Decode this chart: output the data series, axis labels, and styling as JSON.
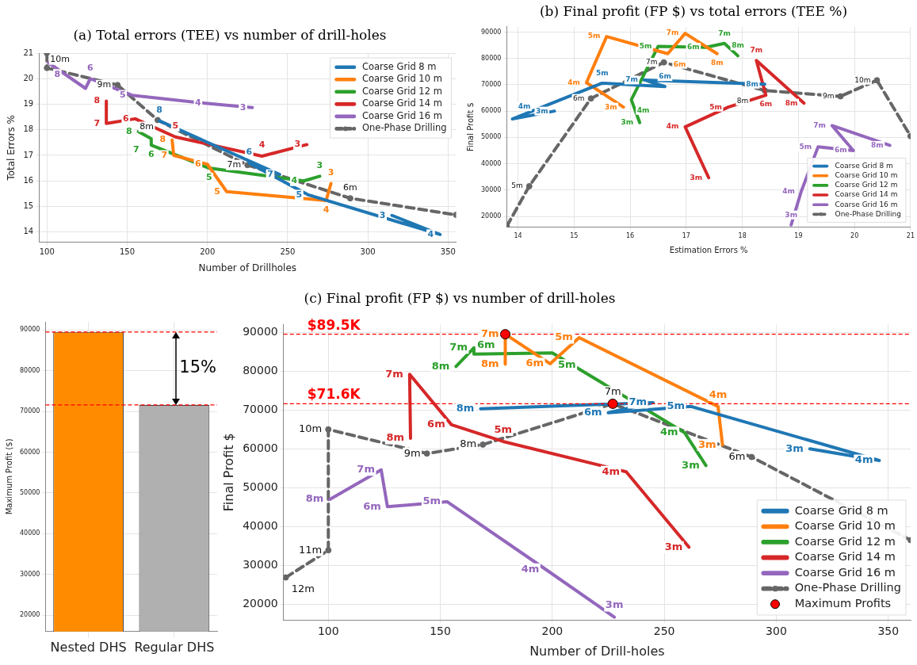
{
  "chart_data": [
    {
      "type": "line",
      "title": "(a) Total errors (TEE) vs number of drill-holes",
      "xlabel": "Number of Drillholes",
      "ylabel": "Total Errors %",
      "xlim": [
        95,
        355
      ],
      "xticks": [
        100,
        150,
        200,
        250,
        300,
        350
      ],
      "ylim": [
        13.6,
        21
      ],
      "yticks": [
        14,
        15,
        16,
        17,
        18,
        19,
        20,
        21
      ],
      "grid": true,
      "legend": "top right",
      "marker": "none",
      "line_style": "solid",
      "series": [
        {
          "name": "Coarse Grid 8 m",
          "color": "#1f77b4",
          "x": [
            170,
            245,
            226,
            263,
            345,
            315
          ],
          "values": [
            18.35,
            16.25,
            16.7,
            15.45,
            13.9,
            14.65
          ]
        },
        {
          "name": "Coarse Grid 10 m",
          "color": "#ff7f0e",
          "x": [
            178,
            179,
            200,
            212,
            274,
            277
          ],
          "values": [
            17.6,
            17.0,
            16.65,
            15.58,
            15.23,
            15.9
          ]
        },
        {
          "name": "Coarse Grid 12 m",
          "color": "#2ca02c",
          "x": [
            157,
            165,
            165,
            201,
            260,
            270
          ],
          "values": [
            17.93,
            17.65,
            17.4,
            16.5,
            16.0,
            16.18
          ]
        },
        {
          "name": "Coarse Grid 14 m",
          "color": "#d62728",
          "x": [
            137,
            137,
            155,
            180,
            234,
            262
          ],
          "values": [
            19.12,
            18.25,
            18.43,
            17.72,
            16.97,
            17.42
          ]
        },
        {
          "name": "Coarse Grid 16 m",
          "color": "#9467bd",
          "x": [
            101,
            124,
            127,
            153,
            200,
            228
          ],
          "values": [
            20.62,
            19.62,
            20.0,
            19.35,
            19.03,
            18.87
          ]
        },
        {
          "name": "One-Phase Drilling",
          "color": "#666666",
          "marker": "circle",
          "line_style": "dashed",
          "x": [
            100,
            100,
            144,
            169,
            225,
            289,
            355
          ],
          "values": [
            21,
            20.42,
            19.75,
            18.38,
            16.62,
            15.32,
            14.67
          ]
        }
      ],
      "annotations": [
        {
          "text": "8",
          "x": 170,
          "y": 18.35
        },
        {
          "text": "7",
          "x": 245,
          "y": 16.25
        },
        {
          "text": "6",
          "x": 226,
          "y": 16.7
        },
        {
          "text": "5",
          "x": 263,
          "y": 15.45
        },
        {
          "text": "4",
          "x": 345,
          "y": 13.9
        },
        {
          "text": "3",
          "x": 315,
          "y": 14.65
        },
        {
          "text": "8",
          "x": 178,
          "y": 17.6
        },
        {
          "text": "7",
          "x": 179,
          "y": 17.0
        },
        {
          "text": "6",
          "x": 200,
          "y": 16.65
        },
        {
          "text": "5",
          "x": 212,
          "y": 15.58
        },
        {
          "text": "4",
          "x": 274,
          "y": 15.23
        },
        {
          "text": "3",
          "x": 277,
          "y": 15.9
        },
        {
          "text": "8",
          "x": 157,
          "y": 17.93
        },
        {
          "text": "7",
          "x": 165,
          "y": 17.65
        },
        {
          "text": "6",
          "x": 165,
          "y": 17.4
        },
        {
          "text": "5",
          "x": 201,
          "y": 16.5
        },
        {
          "text": "4",
          "x": 260,
          "y": 16.0
        },
        {
          "text": "3",
          "x": 270,
          "y": 16.18
        },
        {
          "text": "8",
          "x": 137,
          "y": 19.12
        },
        {
          "text": "7",
          "x": 137,
          "y": 18.25
        },
        {
          "text": "6",
          "x": 155,
          "y": 18.43
        },
        {
          "text": "5",
          "x": 180,
          "y": 17.72
        },
        {
          "text": "4",
          "x": 234,
          "y": 16.97
        },
        {
          "text": "3",
          "x": 262,
          "y": 17.42
        },
        {
          "text": "8",
          "x": 101,
          "y": 20.62
        },
        {
          "text": "6",
          "x": 127,
          "y": 20.0
        },
        {
          "text": "5",
          "x": 153,
          "y": 19.35
        },
        {
          "text": "4",
          "x": 200,
          "y": 19.03
        },
        {
          "text": "3",
          "x": 228,
          "y": 18.87
        },
        {
          "text": "10m",
          "x": 100,
          "y": 20.42
        },
        {
          "text": "9m",
          "x": 144,
          "y": 19.75
        },
        {
          "text": "8m",
          "x": 169,
          "y": 18.38
        },
        {
          "text": "7m",
          "x": 225,
          "y": 16.62
        },
        {
          "text": "6m",
          "x": 289,
          "y": 15.32
        }
      ]
    },
    {
      "type": "line",
      "title": "(b) Final profit (FP $) vs total errors (TEE %)",
      "xlabel": "Estimation Errors %",
      "ylabel": "Final Profit $",
      "xlim": [
        13.8,
        21
      ],
      "xticks": [
        14,
        15,
        16,
        17,
        18,
        19,
        20,
        21
      ],
      "ylim": [
        16000,
        92000
      ],
      "yticks": [
        20000,
        30000,
        40000,
        50000,
        60000,
        70000,
        80000,
        90000
      ],
      "grid": true,
      "legend": "bottom right",
      "marker": "none",
      "line_style": "solid",
      "series": [
        {
          "name": "Coarse Grid 8 m",
          "color": "#1f77b4",
          "x": [
            18.4,
            16.25,
            16.62,
            15.5,
            13.9,
            14.65
          ],
          "values": [
            70200,
            71800,
            69300,
            70600,
            57000,
            60000
          ]
        },
        {
          "name": "Coarse Grid 10 m",
          "color": "#ff7f0e",
          "x": [
            17.55,
            16.98,
            16.67,
            15.58,
            15.22,
            15.88
          ],
          "values": [
            81800,
            89500,
            81800,
            88300,
            70800,
            61500
          ]
        },
        {
          "name": "Coarse Grid 12 m",
          "color": "#2ca02c",
          "x": [
            17.92,
            17.68,
            17.35,
            16.5,
            16.02,
            16.17
          ],
          "values": [
            81000,
            85700,
            84200,
            84600,
            64300,
            55600
          ]
        },
        {
          "name": "Coarse Grid 14 m",
          "color": "#d62728",
          "x": [
            19.1,
            18.25,
            18.42,
            17.75,
            16.98,
            17.4
          ],
          "values": [
            63000,
            79200,
            66000,
            61500,
            54000,
            34700
          ]
        },
        {
          "name": "Coarse Grid 16 m",
          "color": "#9467bd",
          "x": [
            20.63,
            19.6,
            19.98,
            19.35,
            19.05,
            18.87
          ],
          "values": [
            47000,
            54500,
            45000,
            46400,
            29500,
            16800
          ]
        },
        {
          "name": "One-Phase Drilling",
          "color": "#666666",
          "marker": "circle",
          "line_style": "dashed",
          "x": [
            13.8,
            14.2,
            15.3,
            16.6,
            18.4,
            19.75,
            20.4,
            21
          ],
          "values": [
            16300,
            31500,
            64800,
            78500,
            67800,
            65600,
            71700,
            50500
          ]
        }
      ],
      "annotations": [
        {
          "text": "8m",
          "x": 18.4,
          "y": 70200
        },
        {
          "text": "7m",
          "x": 16.25,
          "y": 71800
        },
        {
          "text": "6m",
          "x": 16.62,
          "y": 69300
        },
        {
          "text": "5m",
          "x": 15.5,
          "y": 70600
        },
        {
          "text": "4m",
          "x": 13.9,
          "y": 57000
        },
        {
          "text": "3m",
          "x": 14.65,
          "y": 60000
        },
        {
          "text": "8m",
          "x": 17.55,
          "y": 81800
        },
        {
          "text": "7m",
          "x": 16.98,
          "y": 89500
        },
        {
          "text": "6m",
          "x": 16.67,
          "y": 81800
        },
        {
          "text": "5m",
          "x": 15.58,
          "y": 88300
        },
        {
          "text": "4m",
          "x": 15.22,
          "y": 70800
        },
        {
          "text": "3m",
          "x": 15.88,
          "y": 61500
        },
        {
          "text": "8m",
          "x": 17.92,
          "y": 81000
        },
        {
          "text": "7m",
          "x": 17.68,
          "y": 85700
        },
        {
          "text": "6m",
          "x": 17.35,
          "y": 84200
        },
        {
          "text": "5m",
          "x": 16.5,
          "y": 84600
        },
        {
          "text": "4m",
          "x": 16.02,
          "y": 64300
        },
        {
          "text": "3m",
          "x": 16.17,
          "y": 55600
        },
        {
          "text": "8m",
          "x": 19.1,
          "y": 63000
        },
        {
          "text": "7m",
          "x": 18.25,
          "y": 79200
        },
        {
          "text": "6m",
          "x": 18.42,
          "y": 66000
        },
        {
          "text": "5m",
          "x": 17.75,
          "y": 61500
        },
        {
          "text": "4m",
          "x": 16.98,
          "y": 54000
        },
        {
          "text": "3m",
          "x": 17.4,
          "y": 34700
        },
        {
          "text": "8m",
          "x": 20.63,
          "y": 47000
        },
        {
          "text": "7m",
          "x": 19.6,
          "y": 54500
        },
        {
          "text": "6m",
          "x": 19.98,
          "y": 45000
        },
        {
          "text": "5m",
          "x": 19.35,
          "y": 46400
        },
        {
          "text": "4m",
          "x": 19.05,
          "y": 29500
        },
        {
          "text": "3m",
          "x": 18.87,
          "y": 16800
        },
        {
          "text": "5m",
          "x": 14.2,
          "y": 31500
        },
        {
          "text": "6m",
          "x": 15.3,
          "y": 64800
        },
        {
          "text": "7m",
          "x": 16.6,
          "y": 78500
        },
        {
          "text": "8m",
          "x": 18.4,
          "y": 67800
        },
        {
          "text": "9m",
          "x": 19.75,
          "y": 65600
        },
        {
          "text": "10m",
          "x": 20.4,
          "y": 71700
        }
      ]
    },
    {
      "type": "bar",
      "ylabel": "Maximum Profit ($)",
      "categories": [
        "Nested DHS",
        "Regular DHS"
      ],
      "values": [
        89500,
        71600
      ],
      "colors": [
        "#ff8c00",
        "#b0b0b0"
      ],
      "ylim": [
        16000,
        92000
      ],
      "yticks": [
        20000,
        30000,
        40000,
        50000,
        60000,
        70000,
        80000,
        90000
      ],
      "grid": true,
      "ref_lines": [
        {
          "axis": "y",
          "value": 89500,
          "color": "#ff0000",
          "line_style": "dashed"
        },
        {
          "axis": "y",
          "value": 71600,
          "color": "#ff0000",
          "line_style": "dashed"
        }
      ],
      "annotations": [
        "15%"
      ]
    },
    {
      "type": "line",
      "title": "(c) Final profit (FP $) vs number of drill-holes",
      "xlabel": "Number of Drill-holes",
      "ylabel": "Final Profit $",
      "xlim": [
        80,
        360
      ],
      "xticks": [
        100,
        150,
        200,
        250,
        300,
        350
      ],
      "ylim": [
        16000,
        92000
      ],
      "yticks": [
        20000,
        30000,
        40000,
        50000,
        60000,
        70000,
        80000,
        90000
      ],
      "grid": true,
      "legend": "bottom right",
      "marker": "none",
      "line_style": "solid",
      "ref_lines": [
        {
          "axis": "y",
          "value": 89500,
          "label": "$89.5K",
          "color": "#ff0000",
          "line_style": "dashed"
        },
        {
          "axis": "y",
          "value": 71600,
          "label": "$71.6K",
          "color": "#ff0000",
          "line_style": "dashed"
        }
      ],
      "series": [
        {
          "name": "Coarse Grid 8 m",
          "color": "#1f77b4",
          "x": [
            168,
            245,
            225,
            262,
            346,
            315
          ],
          "values": [
            70300,
            71900,
            69300,
            70900,
            57000,
            60000
          ]
        },
        {
          "name": "Coarse Grid 10 m",
          "color": "#ff7f0e",
          "x": [
            179,
            179,
            199,
            212,
            274,
            276
          ],
          "values": [
            81800,
            89500,
            81900,
            88600,
            70900,
            61000
          ]
        },
        {
          "name": "Coarse Grid 12 m",
          "color": "#2ca02c",
          "x": [
            157,
            165,
            165,
            200,
            259,
            268.6
          ],
          "values": [
            81200,
            86000,
            84400,
            84700,
            64200,
            55700
          ]
        },
        {
          "name": "Coarse Grid 14 m",
          "color": "#d62728",
          "x": [
            136.7,
            136.3,
            155,
            178,
            233,
            261
          ],
          "values": [
            62700,
            79200,
            66200,
            61900,
            54100,
            34700
          ]
        },
        {
          "name": "Coarse Grid 16 m",
          "color": "#9467bd",
          "x": [
            100.7,
            123.6,
            126.4,
            153,
            197,
            227.7
          ],
          "values": [
            47000,
            54600,
            45100,
            46400,
            29000,
            16700
          ]
        },
        {
          "name": "One-Phase Drilling",
          "color": "#666666",
          "marker": "circle",
          "line_style": "dashed",
          "x": [
            81,
            100,
            100,
            144,
            169,
            227,
            289,
            360
          ],
          "values": [
            26900,
            33900,
            65000,
            58800,
            61100,
            71600,
            57900,
            36500
          ]
        },
        {
          "name": "Maximum Profits",
          "type": "scatter",
          "color": "#ff0000",
          "marker": "circle",
          "x": [
            179,
            227
          ],
          "values": [
            89500,
            71600
          ]
        }
      ],
      "annotations": [
        {
          "text": "8m",
          "x": 168,
          "y": 70300
        },
        {
          "text": "7m",
          "x": 245,
          "y": 71900
        },
        {
          "text": "6m",
          "x": 225,
          "y": 69300
        },
        {
          "text": "5m",
          "x": 262,
          "y": 70900
        },
        {
          "text": "4m",
          "x": 346,
          "y": 57000
        },
        {
          "text": "3m",
          "x": 315,
          "y": 60000
        },
        {
          "text": "8m",
          "x": 179,
          "y": 81800
        },
        {
          "text": "7m",
          "x": 179,
          "y": 89500
        },
        {
          "text": "6m",
          "x": 199,
          "y": 81900
        },
        {
          "text": "5m",
          "x": 212,
          "y": 88600
        },
        {
          "text": "4m",
          "x": 274,
          "y": 70900
        },
        {
          "text": "3m",
          "x": 276,
          "y": 61000
        },
        {
          "text": "8m",
          "x": 157,
          "y": 81200
        },
        {
          "text": "7m",
          "x": 165,
          "y": 86000
        },
        {
          "text": "6m",
          "x": 165,
          "y": 84400
        },
        {
          "text": "5m",
          "x": 200,
          "y": 84700
        },
        {
          "text": "4m",
          "x": 259,
          "y": 64200
        },
        {
          "text": "3m",
          "x": 268.6,
          "y": 55700
        },
        {
          "text": "8m",
          "x": 136.7,
          "y": 62700
        },
        {
          "text": "7m",
          "x": 136.3,
          "y": 79200
        },
        {
          "text": "6m",
          "x": 155,
          "y": 66200
        },
        {
          "text": "5m",
          "x": 178,
          "y": 61900
        },
        {
          "text": "4m",
          "x": 233,
          "y": 54100
        },
        {
          "text": "3m",
          "x": 261,
          "y": 34700
        },
        {
          "text": "8m",
          "x": 100.7,
          "y": 47000
        },
        {
          "text": "7m",
          "x": 123.6,
          "y": 54600
        },
        {
          "text": "6m",
          "x": 126.4,
          "y": 45100
        },
        {
          "text": "5m",
          "x": 153,
          "y": 46400
        },
        {
          "text": "4m",
          "x": 197,
          "y": 29000
        },
        {
          "text": "3m",
          "x": 227.7,
          "y": 16700
        },
        {
          "text": "12m",
          "x": 81,
          "y": 26900
        },
        {
          "text": "11m",
          "x": 100,
          "y": 33900
        },
        {
          "text": "10m",
          "x": 100,
          "y": 65000
        },
        {
          "text": "9m",
          "x": 144,
          "y": 58800
        },
        {
          "text": "8m",
          "x": 169,
          "y": 61100
        },
        {
          "text": "7m",
          "x": 227,
          "y": 71600
        },
        {
          "text": "6m",
          "x": 289,
          "y": 57900
        }
      ]
    }
  ]
}
